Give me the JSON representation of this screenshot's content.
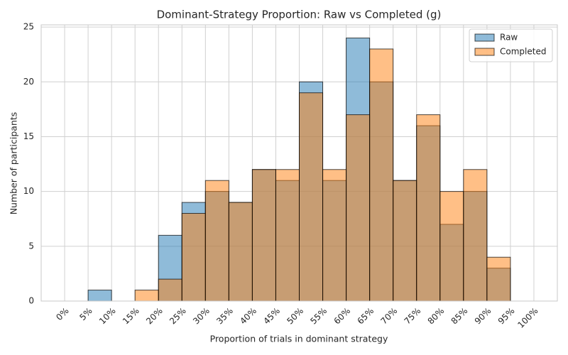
{
  "chart_data": {
    "type": "histogram",
    "title": "Dominant-Strategy Proportion: Raw vs Completed (g)",
    "xlabel": "Proportion of trials in dominant strategy",
    "ylabel": "Number of participants",
    "bins": [
      0,
      5,
      10,
      15,
      20,
      25,
      30,
      35,
      40,
      45,
      50,
      55,
      60,
      65,
      70,
      75,
      80,
      85,
      90,
      95,
      100
    ],
    "series": [
      {
        "name": "Raw",
        "color": "#1f77b4",
        "values": [
          0,
          1,
          0,
          0,
          6,
          9,
          10,
          9,
          12,
          11,
          20,
          11,
          24,
          20,
          11,
          16,
          7,
          10,
          3,
          0
        ]
      },
      {
        "name": "Completed",
        "color": "#ff7f0e",
        "values": [
          0,
          0,
          0,
          1,
          2,
          8,
          11,
          9,
          12,
          12,
          19,
          12,
          17,
          23,
          11,
          17,
          10,
          12,
          4,
          0
        ]
      }
    ],
    "xlim": [
      -5,
      105
    ],
    "ylim": [
      0,
      25.2
    ],
    "xticks": [
      {
        "value": 0,
        "label": "0%"
      },
      {
        "value": 5,
        "label": "5%"
      },
      {
        "value": 10,
        "label": "10%"
      },
      {
        "value": 15,
        "label": "15%"
      },
      {
        "value": 20,
        "label": "20%"
      },
      {
        "value": 25,
        "label": "25%"
      },
      {
        "value": 30,
        "label": "30%"
      },
      {
        "value": 35,
        "label": "35%"
      },
      {
        "value": 40,
        "label": "40%"
      },
      {
        "value": 45,
        "label": "45%"
      },
      {
        "value": 50,
        "label": "50%"
      },
      {
        "value": 55,
        "label": "55%"
      },
      {
        "value": 60,
        "label": "60%"
      },
      {
        "value": 65,
        "label": "65%"
      },
      {
        "value": 70,
        "label": "70%"
      },
      {
        "value": 75,
        "label": "75%"
      },
      {
        "value": 80,
        "label": "80%"
      },
      {
        "value": 85,
        "label": "85%"
      },
      {
        "value": 90,
        "label": "90%"
      },
      {
        "value": 95,
        "label": "95%"
      },
      {
        "value": 100,
        "label": "100%"
      }
    ],
    "yticks": [
      0,
      5,
      10,
      15,
      20,
      25
    ],
    "grid": true,
    "legend": "upper right"
  }
}
